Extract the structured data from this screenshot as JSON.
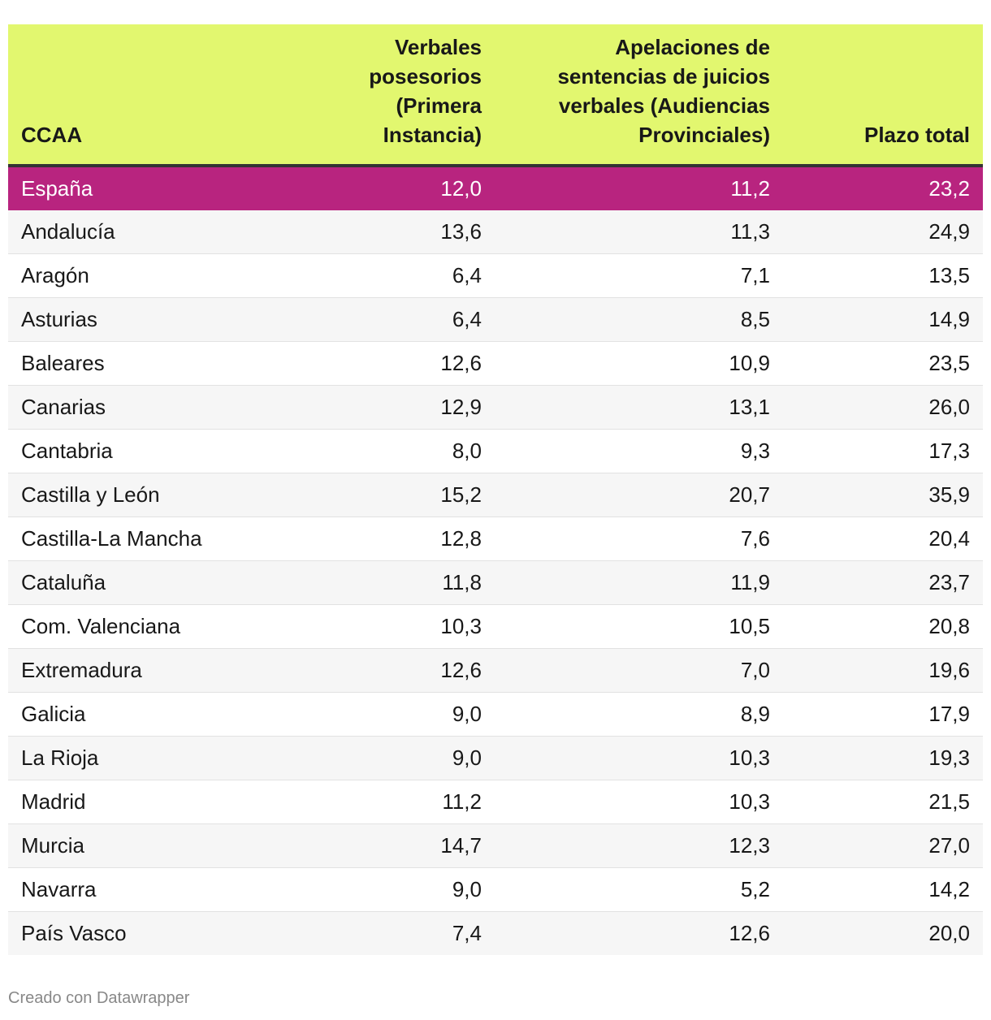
{
  "chart_data": {
    "type": "table",
    "columns": [
      "CCAA",
      "Verbales posesorios (Primera Instancia)",
      "Apelaciones de sentencias de juicios verbales (Audiencias Provinciales)",
      "Plazo total"
    ],
    "rows": [
      [
        "España",
        "12,0",
        "11,2",
        "23,2"
      ],
      [
        "Andalucía",
        "13,6",
        "11,3",
        "24,9"
      ],
      [
        "Aragón",
        "6,4",
        "7,1",
        "13,5"
      ],
      [
        "Asturias",
        "6,4",
        "8,5",
        "14,9"
      ],
      [
        "Baleares",
        "12,6",
        "10,9",
        "23,5"
      ],
      [
        "Canarias",
        "12,9",
        "13,1",
        "26,0"
      ],
      [
        "Cantabria",
        "8,0",
        "9,3",
        "17,3"
      ],
      [
        "Castilla y León",
        "15,2",
        "20,7",
        "35,9"
      ],
      [
        "Castilla-La Mancha",
        "12,8",
        "7,6",
        "20,4"
      ],
      [
        "Cataluña",
        "11,8",
        "11,9",
        "23,7"
      ],
      [
        "Com. Valenciana",
        "10,3",
        "10,5",
        "20,8"
      ],
      [
        "Extremadura",
        "12,6",
        "7,0",
        "19,6"
      ],
      [
        "Galicia",
        "9,0",
        "8,9",
        "17,9"
      ],
      [
        "La Rioja",
        "9,0",
        "10,3",
        "19,3"
      ],
      [
        "Madrid",
        "11,2",
        "10,3",
        "21,5"
      ],
      [
        "Murcia",
        "14,7",
        "12,3",
        "27,0"
      ],
      [
        "Navarra",
        "9,0",
        "5,2",
        "14,2"
      ],
      [
        "País Vasco",
        "7,4",
        "12,6",
        "20,0"
      ]
    ],
    "highlight_row": "España",
    "colors": {
      "header_background": "#e2f76f",
      "highlight_background": "#b8247f",
      "highlight_text": "#ffffff",
      "stripe_background": "#f6f6f6"
    }
  },
  "footer": {
    "credit": "Creado con Datawrapper"
  }
}
